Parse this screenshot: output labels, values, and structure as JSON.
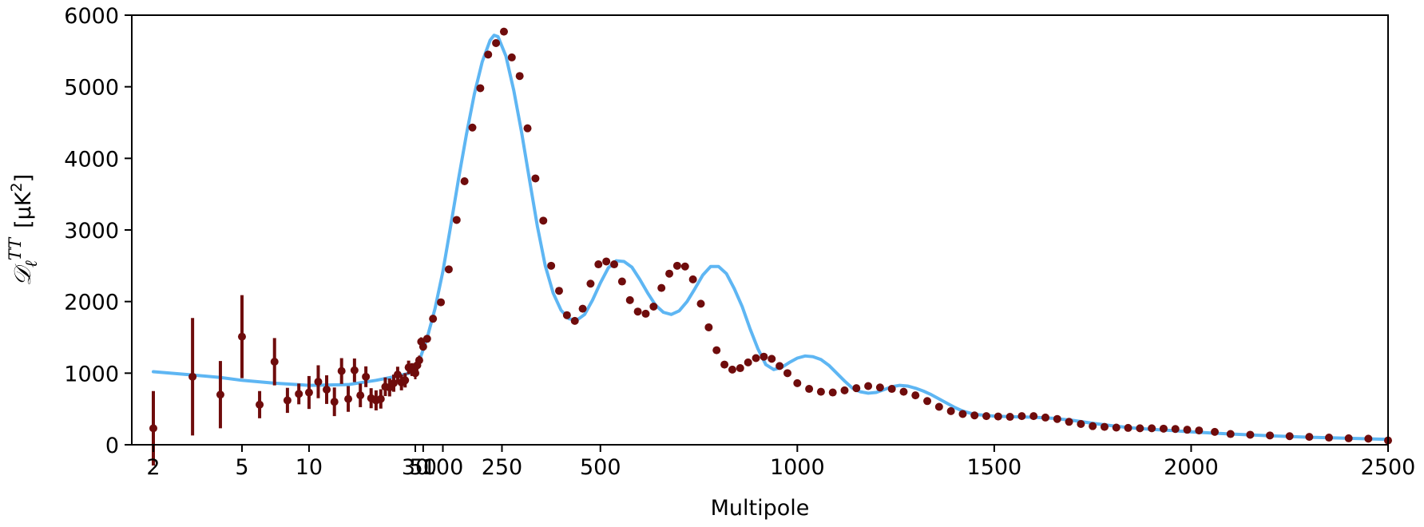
{
  "chart_data": {
    "type": "scatter",
    "title": "",
    "xlabel": "Multipole",
    "ylabel": "D_ℓ^TT [μK²]",
    "ylabel_parts": {
      "symbol": "𝒟",
      "sub": "ℓ",
      "sup": "TT",
      "unit_open": "[μK",
      "unit_exp": "2",
      "unit_close": "]"
    },
    "xscale": "log for ℓ < 30, linear for ℓ ≥ 30",
    "xlim": [
      2,
      2500
    ],
    "ylim": [
      0,
      6000
    ],
    "grid": false,
    "legend": "none",
    "xticks": [
      2,
      5,
      10,
      30,
      50,
      100,
      250,
      500,
      1000,
      1500,
      2000,
      2500
    ],
    "xtick_labels": [
      "2",
      "5",
      "10",
      "30",
      "50",
      "100",
      "250",
      "500",
      "1000",
      "1500",
      "2000",
      "2500"
    ],
    "yticks": [
      0,
      1000,
      2000,
      3000,
      4000,
      5000,
      6000
    ],
    "ytick_labels": [
      "0",
      "1000",
      "2000",
      "3000",
      "4000",
      "5000",
      "6000"
    ],
    "colors": {
      "model": "#5eb6f3",
      "data": "#6f0c0c",
      "axes": "#000000"
    },
    "series": [
      {
        "role": "model-curve",
        "x": [
          2,
          3,
          4,
          5,
          7,
          10,
          15,
          20,
          25,
          30,
          40,
          50,
          60,
          80,
          100,
          120,
          140,
          160,
          180,
          200,
          220,
          230,
          240,
          260,
          280,
          300,
          320,
          340,
          360,
          380,
          400,
          420,
          440,
          460,
          480,
          500,
          520,
          540,
          560,
          580,
          600,
          620,
          640,
          660,
          680,
          700,
          720,
          740,
          760,
          780,
          800,
          820,
          840,
          860,
          880,
          900,
          920,
          940,
          960,
          980,
          1000,
          1020,
          1040,
          1060,
          1080,
          1100,
          1120,
          1140,
          1160,
          1180,
          1200,
          1220,
          1240,
          1260,
          1280,
          1300,
          1320,
          1340,
          1360,
          1380,
          1400,
          1420,
          1440,
          1460,
          1480,
          1500,
          1550,
          1600,
          1650,
          1700,
          1750,
          1800,
          1850,
          1900,
          1950,
          2000,
          2100,
          2200,
          2300,
          2400,
          2500
        ],
        "y": [
          1020,
          975,
          940,
          900,
          860,
          830,
          840,
          900,
          960,
          1020,
          1170,
          1330,
          1490,
          1900,
          2420,
          3060,
          3720,
          4340,
          4900,
          5350,
          5650,
          5720,
          5700,
          5430,
          4950,
          4360,
          3700,
          3050,
          2500,
          2120,
          1880,
          1760,
          1740,
          1820,
          2020,
          2260,
          2470,
          2570,
          2560,
          2480,
          2310,
          2120,
          1950,
          1850,
          1820,
          1870,
          2000,
          2180,
          2370,
          2490,
          2490,
          2390,
          2180,
          1930,
          1620,
          1340,
          1120,
          1050,
          1080,
          1150,
          1210,
          1240,
          1230,
          1190,
          1110,
          1000,
          890,
          790,
          740,
          720,
          730,
          770,
          810,
          830,
          820,
          790,
          750,
          700,
          640,
          580,
          520,
          470,
          440,
          420,
          410,
          400,
          390,
          385,
          370,
          340,
          300,
          265,
          235,
          215,
          200,
          180,
          150,
          125,
          105,
          90,
          75
        ]
      },
      {
        "role": "data-points",
        "x": [
          2,
          3,
          4,
          5,
          6,
          7,
          8,
          9,
          10,
          11,
          12,
          13,
          14,
          15,
          16,
          17,
          18,
          19,
          20,
          21,
          22,
          23,
          24,
          25,
          26,
          27,
          28,
          29,
          30,
          35,
          40,
          45,
          50,
          60,
          75,
          95,
          115,
          135,
          155,
          175,
          195,
          215,
          235,
          255,
          275,
          295,
          315,
          335,
          355,
          375,
          395,
          415,
          435,
          455,
          475,
          495,
          515,
          535,
          555,
          575,
          595,
          615,
          635,
          655,
          675,
          695,
          715,
          735,
          755,
          775,
          795,
          815,
          835,
          855,
          875,
          895,
          915,
          935,
          955,
          975,
          1000,
          1030,
          1060,
          1090,
          1120,
          1150,
          1180,
          1210,
          1240,
          1270,
          1300,
          1330,
          1360,
          1390,
          1420,
          1450,
          1480,
          1510,
          1540,
          1570,
          1600,
          1630,
          1660,
          1690,
          1720,
          1750,
          1780,
          1810,
          1840,
          1870,
          1900,
          1930,
          1960,
          1990,
          2020,
          2060,
          2100,
          2150,
          2200,
          2250,
          2300,
          2350,
          2400,
          2450,
          2500
        ],
        "y": [
          230,
          950,
          700,
          1510,
          560,
          1160,
          620,
          710,
          730,
          880,
          770,
          600,
          1030,
          640,
          1040,
          690,
          950,
          650,
          620,
          640,
          810,
          800,
          860,
          980,
          870,
          900,
          1080,
          1050,
          1000,
          1110,
          1180,
          1440,
          1370,
          1480,
          1760,
          1990,
          2450,
          3140,
          3680,
          4430,
          4980,
          5450,
          5610,
          5770,
          5410,
          5150,
          4420,
          3720,
          3130,
          2500,
          2150,
          1810,
          1730,
          1900,
          2250,
          2520,
          2560,
          2520,
          2280,
          2020,
          1860,
          1830,
          1930,
          2190,
          2390,
          2500,
          2490,
          2310,
          1970,
          1640,
          1320,
          1120,
          1050,
          1070,
          1150,
          1210,
          1230,
          1200,
          1100,
          1000,
          860,
          780,
          740,
          730,
          760,
          790,
          820,
          800,
          780,
          740,
          690,
          610,
          530,
          470,
          430,
          410,
          400,
          395,
          390,
          400,
          400,
          380,
          360,
          320,
          290,
          260,
          250,
          240,
          235,
          230,
          230,
          225,
          220,
          210,
          200,
          180,
          150,
          140,
          130,
          120,
          110,
          100,
          90,
          85,
          60
        ],
        "err": [
          520,
          820,
          470,
          580,
          190,
          330,
          175,
          145,
          230,
          230,
          200,
          200,
          180,
          180,
          165,
          165,
          145,
          140,
          140,
          135,
          130,
          125,
          120,
          110,
          110,
          100,
          95,
          90,
          85,
          70,
          65,
          60,
          55,
          50,
          45,
          42,
          42,
          42,
          42,
          42,
          42,
          42,
          42,
          42,
          40,
          40,
          38,
          36,
          34,
          32,
          30,
          28,
          26,
          24,
          24,
          22,
          22,
          22,
          20,
          20,
          20,
          18,
          18,
          18,
          18,
          18,
          18,
          18,
          16,
          16,
          16,
          16,
          16,
          16,
          14,
          14,
          14,
          14,
          14,
          14,
          12,
          12,
          12,
          12,
          12,
          12,
          12,
          12,
          10,
          10,
          10,
          10,
          10,
          10,
          10,
          10,
          10,
          10,
          10,
          10,
          10,
          10,
          10,
          10,
          10,
          10,
          10,
          10,
          10,
          10,
          10,
          10,
          10,
          10,
          10,
          10,
          10,
          10,
          10,
          10,
          10,
          10,
          10,
          10,
          10
        ]
      }
    ]
  }
}
